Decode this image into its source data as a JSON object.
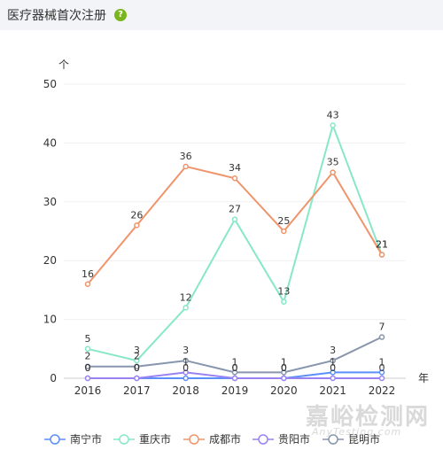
{
  "header": {
    "title": "医疗器械首次注册",
    "help_icon": "question-circle-icon",
    "help_glyph": "?"
  },
  "watermark": {
    "text": "嘉峪检测网",
    "sub": "AnyTesting.com"
  },
  "chart_data": {
    "type": "line",
    "title": "",
    "ylabel": "个",
    "xlabel": "年",
    "ylim": [
      0,
      50
    ],
    "yticks": [
      0,
      10,
      20,
      30,
      40,
      50
    ],
    "x": [
      "2016",
      "2017",
      "2018",
      "2019",
      "2020",
      "2021",
      "2022"
    ],
    "grid": true,
    "legend": "bottom",
    "series": [
      {
        "name": "南宁市",
        "color": "#5b8ff9",
        "values": [
          0,
          0,
          0,
          0,
          0,
          1,
          1
        ]
      },
      {
        "name": "重庆市",
        "color": "#87e8c6",
        "values": [
          5,
          3,
          12,
          27,
          13,
          43,
          21
        ]
      },
      {
        "name": "成都市",
        "color": "#f0946b",
        "values": [
          16,
          26,
          36,
          34,
          25,
          35,
          21
        ]
      },
      {
        "name": "贵阳市",
        "color": "#9b82f2",
        "values": [
          0,
          0,
          1,
          0,
          0,
          0,
          0
        ]
      },
      {
        "name": "昆明市",
        "color": "#8795ad",
        "values": [
          2,
          2,
          3,
          1,
          1,
          3,
          7
        ]
      }
    ]
  }
}
